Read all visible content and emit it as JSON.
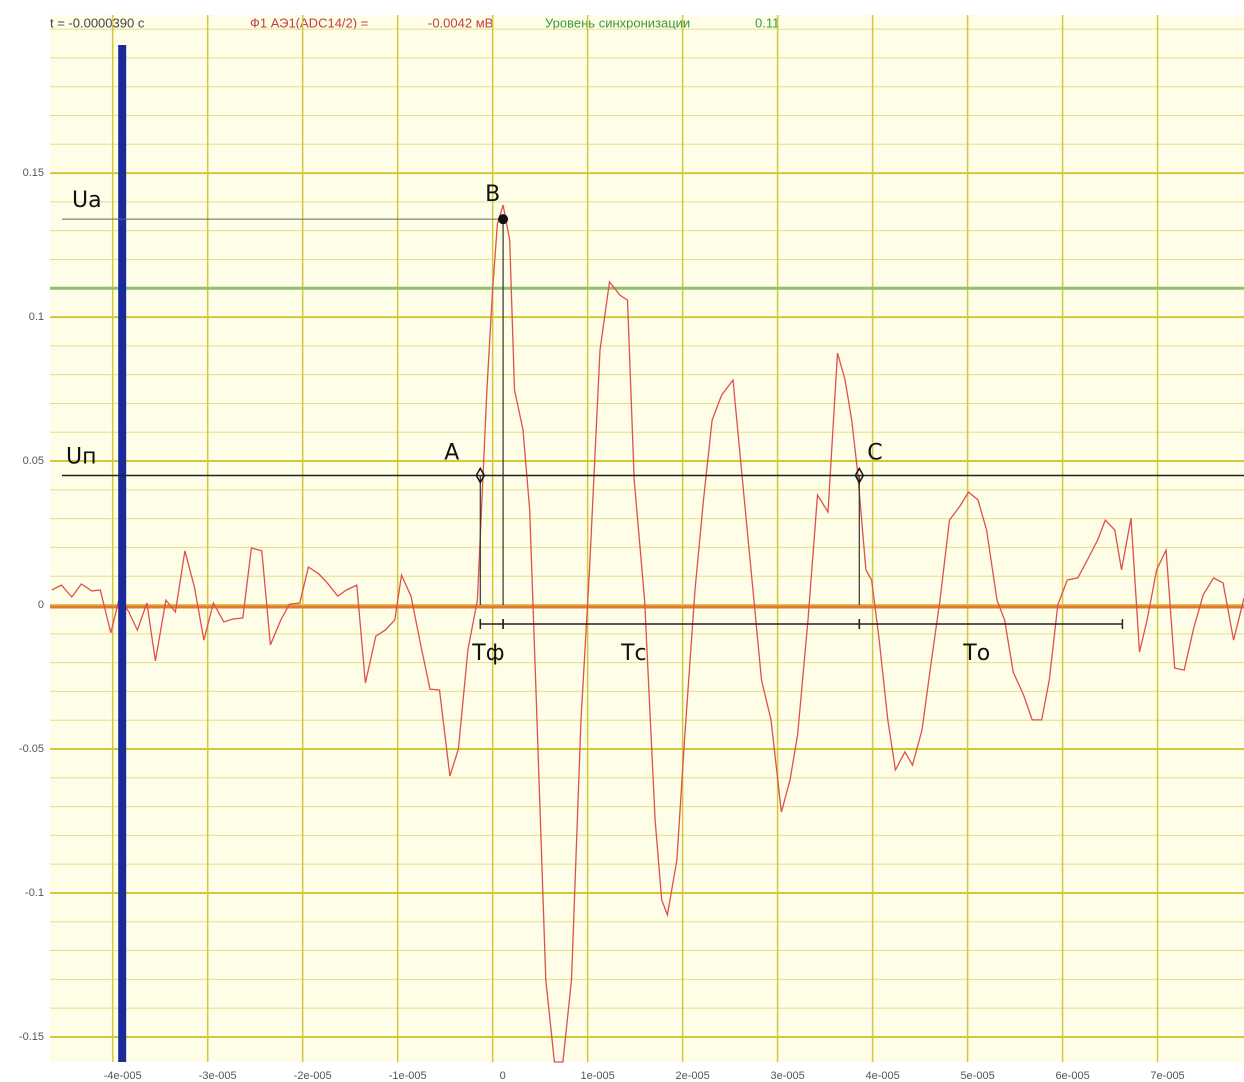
{
  "chart_data": {
    "type": "line",
    "header": {
      "time": "t = -0.0000390 с",
      "channel": "Ф1 АЭ1(ADC14/2) =",
      "channel_value": "-0.0042 мВ",
      "sync_label": "Уровень синхронизации",
      "sync_level": 0.11
    },
    "cursor_x": -3.9e-05,
    "x": [
      -4.64e-05,
      -4.54e-05,
      -4.43e-05,
      -4.33e-05,
      -4.22e-05,
      -4.13e-05,
      -4.02e-05,
      -3.93e-05,
      -3.83e-05,
      -3.74e-05,
      -3.64e-05,
      -3.55e-05,
      -3.44e-05,
      -3.34e-05,
      -3.24e-05,
      -3.14e-05,
      -3.04e-05,
      -2.94e-05,
      -2.83e-05,
      -2.74e-05,
      -2.63e-05,
      -2.54e-05,
      -2.43e-05,
      -2.34e-05,
      -2.23e-05,
      -2.14e-05,
      -2.03e-05,
      -1.94e-05,
      -1.83e-05,
      -1.74e-05,
      -1.63e-05,
      -1.54e-05,
      -1.43e-05,
      -1.34e-05,
      -1.23e-05,
      -1.13e-05,
      -1.03e-05,
      -9.6e-06,
      -8.6e-06,
      -7.6e-06,
      -6.6e-06,
      -5.6e-06,
      -4.5e-06,
      -3.6e-06,
      -2.6e-06,
      -1.6e-06,
      -6e-07,
      0,
      5e-07,
      1.1e-06,
      1.8e-06,
      2.3e-06,
      3.2e-06,
      3.9e-06,
      4.6e-06,
      5.6e-06,
      6.5e-06,
      7.4e-06,
      8.3e-06,
      9.3e-06,
      1.02e-05,
      1.13e-05,
      1.23e-05,
      1.34e-05,
      1.42e-05,
      1.49e-05,
      1.6e-05,
      1.71e-05,
      1.78e-05,
      1.84e-05,
      1.94e-05,
      2.02e-05,
      2.13e-05,
      2.22e-05,
      2.31e-05,
      2.41e-05,
      2.53e-05,
      2.62e-05,
      2.73e-05,
      2.83e-05,
      2.93e-05,
      3.04e-05,
      3.13e-05,
      3.21e-05,
      3.32e-05,
      3.42e-05,
      3.53e-05,
      3.63e-05,
      3.71e-05,
      3.78e-05,
      3.84e-05,
      3.93e-05,
      3.99e-05,
      4.07e-05,
      4.16e-05,
      4.24e-05,
      4.34e-05,
      4.42e-05,
      4.52e-05,
      4.62e-05,
      4.71e-05,
      4.81e-05,
      4.92e-05,
      5.01e-05,
      5.11e-05,
      5.2e-05,
      5.31e-05,
      5.39e-05,
      5.48e-05,
      5.59e-05,
      5.68e-05,
      5.78e-05,
      5.86e-05,
      5.95e-05,
      6.05e-05,
      6.16e-05,
      6.26e-05,
      6.37e-05,
      6.45e-05,
      6.55e-05,
      6.62e-05,
      6.72e-05,
      6.81e-05,
      6.89e-05,
      6.99e-05,
      7.09e-05,
      7.18e-05,
      7.28e-05,
      7.38e-05,
      7.48e-05,
      7.59e-05,
      7.69e-05,
      7.8e-05,
      7.91e-05
    ],
    "values": [
      0.0052,
      0.0069,
      0.0028,
      0.0073,
      0.0049,
      0.0052,
      -0.0097,
      0.0024,
      -0.0024,
      -0.0087,
      0.0007,
      -0.0194,
      0.0017,
      -0.0024,
      0.0188,
      0.0063,
      -0.0122,
      0.0007,
      -0.0059,
      -0.0049,
      -0.0045,
      0.0198,
      0.0188,
      -0.0139,
      -0.0052,
      0.0003,
      0.0007,
      0.0132,
      0.0108,
      0.0076,
      0.0031,
      0.0052,
      0.0069,
      -0.0271,
      -0.0108,
      -0.0087,
      -0.0052,
      0.0104,
      0.0031,
      -0.0135,
      -0.0292,
      -0.0295,
      -0.0594,
      -0.05,
      -0.0156,
      0.0017,
      0.0747,
      0.1094,
      0.1323,
      0.1389,
      0.1267,
      0.0747,
      0.0608,
      0.033,
      -0.033,
      -0.1302,
      -0.1587,
      -0.1587,
      -0.1302,
      -0.0399,
      0.0122,
      0.0885,
      0.1122,
      0.1076,
      0.1059,
      0.0434,
      0.0017,
      -0.0747,
      -0.1024,
      -0.1076,
      -0.0885,
      -0.0469,
      0.0052,
      0.0365,
      0.0642,
      0.0729,
      0.0781,
      0.0469,
      0.0087,
      -0.026,
      -0.0399,
      -0.0719,
      -0.0608,
      -0.0451,
      -0.0052,
      0.0382,
      0.0323,
      0.0875,
      0.0781,
      0.0642,
      0.0469,
      0.0122,
      0.0087,
      -0.0122,
      -0.0399,
      -0.0573,
      -0.051,
      -0.0556,
      -0.0434,
      -0.0191,
      0.0017,
      0.0295,
      0.0344,
      0.0392,
      0.0365,
      0.026,
      0.0017,
      -0.0052,
      -0.0233,
      -0.0313,
      -0.0399,
      -0.0399,
      -0.026,
      0,
      0.0087,
      0.0094,
      0.0156,
      0.0226,
      0.0295,
      0.026,
      0.0122,
      0.0302,
      -0.0163,
      -0.0052,
      0.0122,
      0.0191,
      -0.0219,
      -0.0226,
      -0.008,
      0.0035,
      0.0094,
      0.0076,
      -0.0122,
      0.0024
    ],
    "color": "#e0504c",
    "xlim": [
      -4.66e-05,
      7.91e-05
    ],
    "ylim": [
      -0.1587,
      0.2049
    ],
    "yticks": [
      0.15,
      0.1,
      0.05,
      0,
      -0.05,
      -0.1,
      -0.15
    ],
    "xticks": [
      {
        "value": -4e-05,
        "label": "-4e-005"
      },
      {
        "value": -3e-05,
        "label": "-3e-005"
      },
      {
        "value": -2e-05,
        "label": "-2e-005"
      },
      {
        "value": -1e-05,
        "label": "-1e-005"
      },
      0,
      {
        "value": 1e-05,
        "label": "1e-005"
      },
      {
        "value": 2e-05,
        "label": "2e-005"
      },
      {
        "value": 3e-05,
        "label": "3e-005"
      },
      {
        "value": 4e-05,
        "label": "4e-005"
      },
      {
        "value": 5e-05,
        "label": "5e-005"
      },
      {
        "value": 6e-05,
        "label": "6e-005"
      },
      {
        "value": 7e-05,
        "label": "7e-005"
      }
    ],
    "grid": true,
    "annotations": {
      "ua": {
        "label": "Ua",
        "y": 0.134
      },
      "un": {
        "label": "Uп",
        "y": 0.045
      },
      "points": [
        {
          "label": "A",
          "x": -1.3e-06
        },
        {
          "label": "B",
          "x": 1.1e-06
        },
        {
          "label": "C",
          "x": 3.86e-05
        }
      ],
      "interval_edges": [
        -1.3e-06,
        1.1e-06,
        3.86e-05,
        6.63e-05
      ],
      "interval_labels": [
        "Тф",
        "Тс",
        "То"
      ]
    }
  }
}
